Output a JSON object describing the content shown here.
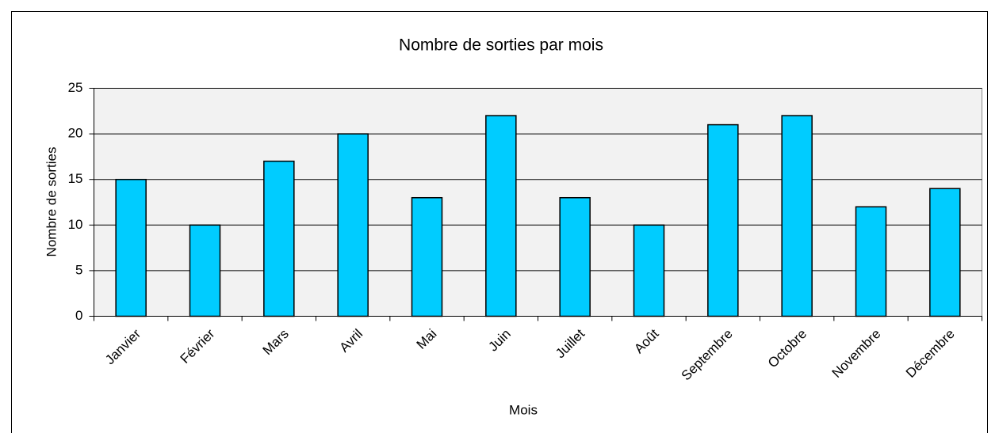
{
  "chart_data": {
    "type": "bar",
    "title": "Nombre de sorties par mois",
    "x_label": "Mois",
    "y_label": "Nombre de sorties",
    "categories": [
      "Janvier",
      "Février",
      "Mars",
      "Avril",
      "Mai",
      "Juin",
      "Juillet",
      "Août",
      "Septembre",
      "Octobre",
      "Novembre",
      "Décembre"
    ],
    "values": [
      15,
      10,
      17,
      20,
      13,
      22,
      13,
      10,
      21,
      22,
      12,
      14
    ],
    "color": "#00ccff",
    "ylim": [
      0,
      25
    ],
    "yticks": [
      0,
      5,
      10,
      15,
      20,
      25
    ],
    "grid": true
  }
}
